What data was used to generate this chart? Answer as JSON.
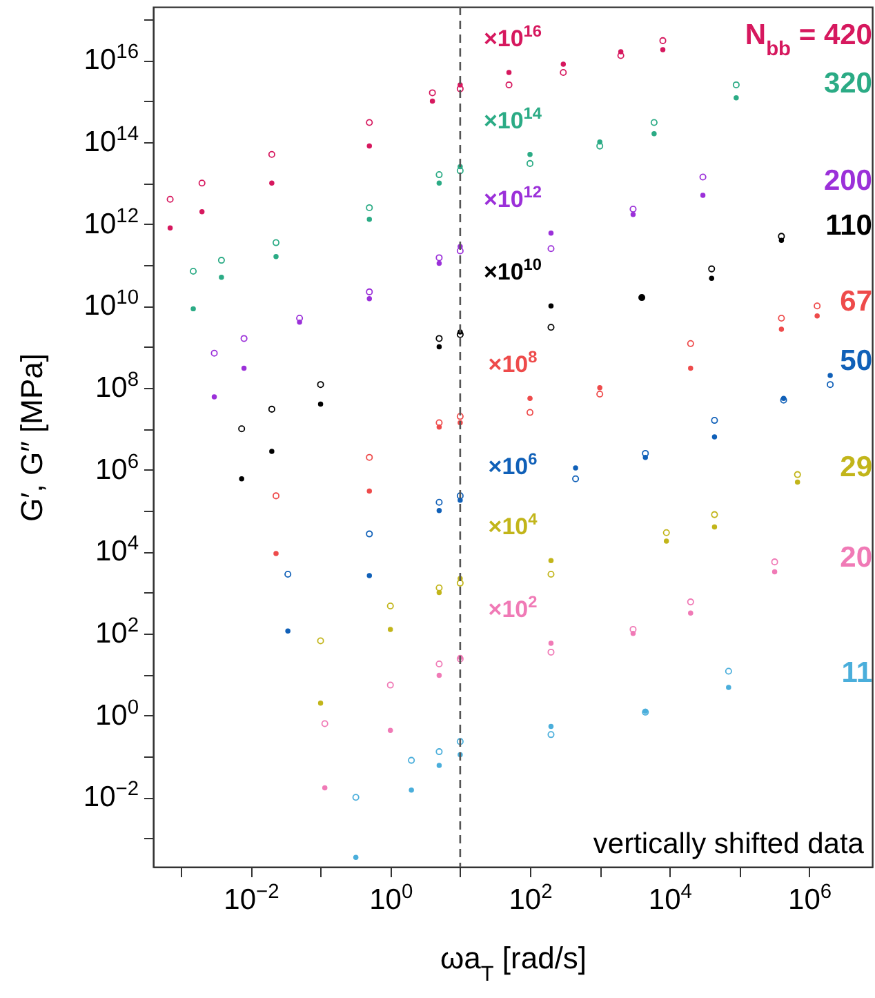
{
  "chart_data": {
    "type": "scatter",
    "log": "xy",
    "grid": false,
    "xlabel": "ωa$_{T}$ [rad/s]",
    "ylabel": "G′, G″ [MPa]",
    "xlim": [
      0.0004,
      8000000.0
    ],
    "ylim": [
      0.0002,
      2e+17
    ],
    "xticks": [
      {
        "value": 0.001,
        "label": null
      },
      {
        "value": 0.01,
        "label": "10$^{−2}$"
      },
      {
        "value": 0.1,
        "label": null
      },
      {
        "value": 1,
        "label": "10$^{0}$"
      },
      {
        "value": 10,
        "label": null
      },
      {
        "value": 100,
        "label": "10$^{2}$"
      },
      {
        "value": 1000,
        "label": null
      },
      {
        "value": 10000.0,
        "label": "10$^{4}$"
      },
      {
        "value": 100000.0,
        "label": null
      },
      {
        "value": 1000000.0,
        "label": "10$^{6}$"
      }
    ],
    "yticks": [
      {
        "value": 0.001,
        "label": null
      },
      {
        "value": 0.01,
        "label": "10$^{−2}$"
      },
      {
        "value": 0.1,
        "label": null
      },
      {
        "value": 1,
        "label": "10$^{0}$"
      },
      {
        "value": 10,
        "label": null
      },
      {
        "value": 100,
        "label": "10$^{2}$"
      },
      {
        "value": 1000,
        "label": null
      },
      {
        "value": 10000.0,
        "label": "10$^{4}$"
      },
      {
        "value": 100000.0,
        "label": null
      },
      {
        "value": 1000000.0,
        "label": "10$^{6}$"
      },
      {
        "value": 10000000.0,
        "label": null
      },
      {
        "value": 100000000.0,
        "label": "10$^{8}$"
      },
      {
        "value": 1000000000.0,
        "label": null
      },
      {
        "value": 10000000000.0,
        "label": "10$^{10}$"
      },
      {
        "value": 100000000000.0,
        "label": null
      },
      {
        "value": 1000000000000.0,
        "label": "10$^{12}$"
      },
      {
        "value": 10000000000000.0,
        "label": null
      },
      {
        "value": 100000000000000.0,
        "label": "10$^{14}$"
      },
      {
        "value": 1000000000000000.0,
        "label": null
      },
      {
        "value": 1e+16,
        "label": "10$^{16}$"
      },
      {
        "value": 1e+17,
        "label": null
      }
    ],
    "ref_lines": [
      {
        "axis": "x",
        "value": 10,
        "color": "#555555",
        "line_style": "dashed"
      }
    ],
    "annotations": [
      "×10$^{16}$",
      "×10$^{14}$",
      "×10$^{12}$",
      "×10$^{10}$",
      "×10$^{8}$",
      "×10$^{6}$",
      "×10$^{4}$",
      "×10$^{2}$",
      "vertically shifted data"
    ],
    "series": [
      {
        "color": "#d6185e",
        "marker": "circle-open",
        "x": [
          0.0007,
          0.002,
          0.02,
          0.5,
          4,
          10,
          50,
          300,
          2000,
          8000
        ],
        "values": [
          4000000000000.0,
          10000000000000.0,
          50000000000000.0,
          300000000000000.0,
          1600000000000000.0,
          2000000000000000.0,
          2500000000000000.0,
          5000000000000000.0,
          1.3e+16,
          3e+16
        ]
      },
      {
        "name": "N$_{bb}$ = 420",
        "color": "#d6185e",
        "marker": "circle",
        "x": [
          0.0007,
          0.002,
          0.02,
          0.5,
          4,
          10,
          50,
          300,
          2000,
          8000
        ],
        "values": [
          800000000000.0,
          2000000000000.0,
          10000000000000.0,
          80000000000000.0,
          1000000000000000.0,
          2500000000000000.0,
          5000000000000000.0,
          8000000000000000.0,
          1.6e+16,
          1.8e+16
        ]
      },
      {
        "color": "#2bab85",
        "marker": "circle-open",
        "x": [
          0.0015,
          0.0038,
          0.023,
          0.5,
          5,
          10,
          100,
          1000,
          6000,
          90000.0
        ],
        "values": [
          70000000000.0,
          130000000000.0,
          350000000000.0,
          2500000000000.0,
          16000000000000.0,
          20000000000000.0,
          30000000000000.0,
          80000000000000.0,
          300000000000000.0,
          2500000000000000.0
        ]
      },
      {
        "name": "320",
        "color": "#2bab85",
        "marker": "circle",
        "x": [
          0.0015,
          0.0038,
          0.023,
          0.5,
          5,
          10,
          100,
          1000,
          6000,
          90000.0
        ],
        "values": [
          8500000000.0,
          50000000000.0,
          160000000000.0,
          1300000000000.0,
          10000000000000.0,
          25000000000000.0,
          50000000000000.0,
          100000000000000.0,
          160000000000000.0,
          1200000000000000.0
        ]
      },
      {
        "color": "#9b30d9",
        "marker": "circle-open",
        "x": [
          0.003,
          0.008,
          0.05,
          0.5,
          5,
          10,
          200,
          3000,
          30000.0
        ],
        "values": [
          700000000.0,
          1600000000.0,
          5000000000.0,
          22000000000.0,
          150000000000.0,
          220000000000.0,
          250000000000.0,
          2300000000000.0,
          14000000000000.0
        ]
      },
      {
        "name": "200",
        "color": "#9b30d9",
        "marker": "circle",
        "x": [
          0.003,
          0.008,
          0.05,
          0.5,
          5,
          10,
          200,
          3000,
          30000.0
        ],
        "values": [
          60000000.0,
          300000000.0,
          4000000000.0,
          15000000000.0,
          110000000000.0,
          280000000000.0,
          600000000000.0,
          1700000000000.0,
          5000000000000.0
        ]
      },
      {
        "color": "#000000",
        "marker": "circle-open",
        "x": [
          0.0074,
          0.02,
          0.1,
          5,
          10,
          200,
          4000,
          40000.0,
          400000.0
        ],
        "values": [
          10000000.0,
          30000000.0,
          120000000.0,
          1600000000.0,
          2000000000.0,
          3000000000.0,
          16000000000.0,
          80000000000.0,
          500000000000.0
        ]
      },
      {
        "name": "110",
        "color": "#000000",
        "marker": "circle",
        "x": [
          0.0074,
          0.02,
          0.1,
          5,
          10,
          200,
          4000,
          40000.0,
          400000.0
        ],
        "values": [
          600000.0,
          2800000.0,
          40000000.0,
          1000000000.0,
          2300000000.0,
          10000000000.0,
          16000000000.0,
          47000000000.0,
          400000000000.0
        ]
      },
      {
        "color": "#ee4b4b",
        "marker": "circle-open",
        "x": [
          0.023,
          0.5,
          5,
          10,
          100,
          1000,
          20000.0,
          400000.0,
          1300000.0
        ],
        "values": [
          230000.0,
          2000000.0,
          14000000.0,
          20000000.0,
          25000000.0,
          70000000.0,
          1200000000.0,
          5000000000.0,
          10000000000.0
        ]
      },
      {
        "name": "67",
        "color": "#ee4b4b",
        "marker": "circle",
        "x": [
          0.023,
          0.5,
          5,
          10,
          100,
          1000,
          20000.0,
          400000.0,
          1300000.0
        ],
        "values": [
          9000.0,
          300000.0,
          11000000.0,
          14000000.0,
          55000000.0,
          100000000.0,
          300000000.0,
          2700000000.0,
          5700000000.0
        ]
      },
      {
        "color": "#1060b8",
        "marker": "circle-open",
        "x": [
          0.034,
          0.5,
          5,
          10,
          450,
          4500,
          44000.0,
          430000.0,
          2000000.0
        ],
        "values": [
          2800.0,
          27000.0,
          160000.0,
          230000.0,
          600000.0,
          2500000.0,
          16000000.0,
          50000000.0,
          120000000.0
        ]
      },
      {
        "name": "50",
        "color": "#1060b8",
        "marker": "circle",
        "x": [
          0.034,
          0.5,
          5,
          10,
          450,
          4500,
          44000.0,
          430000.0,
          2000000.0
        ],
        "values": [
          115,
          2600.0,
          100000.0,
          180000.0,
          1100000.0,
          2000000.0,
          6300000.0,
          55000000.0,
          200000000.0
        ]
      },
      {
        "color": "#c2b51a",
        "marker": "circle-open",
        "x": [
          0.1,
          1,
          5,
          10,
          200,
          9000,
          44000.0,
          680000.0
        ],
        "values": [
          66,
          470,
          1300.0,
          1700.0,
          2800.0,
          29000.0,
          80000.0,
          760000.0
        ]
      },
      {
        "name": "29",
        "color": "#c2b51a",
        "marker": "circle",
        "x": [
          0.1,
          1,
          5,
          10,
          200,
          9000,
          44000.0,
          680000.0
        ],
        "values": [
          2,
          126,
          1000.0,
          2200.0,
          6000.0,
          18000.0,
          40000.0,
          500000.0
        ]
      },
      {
        "color": "#f07ab6",
        "marker": "circle-open",
        "x": [
          0.115,
          1,
          5,
          10,
          200,
          3000,
          20000.0,
          320000.0
        ],
        "values": [
          0.63,
          5.5,
          18,
          24,
          35,
          126,
          590,
          5600.0
        ]
      },
      {
        "name": "20",
        "color": "#f07ab6",
        "marker": "circle",
        "x": [
          0.115,
          1,
          5,
          10,
          200,
          3000,
          20000.0,
          320000.0
        ],
        "values": [
          0.017,
          0.43,
          9.5,
          26,
          58,
          100,
          316,
          3200.0
        ]
      },
      {
        "color": "#4aaedb",
        "marker": "circle-open",
        "x": [
          0.32,
          2,
          5,
          10,
          200,
          4500,
          70000.0
        ],
        "values": [
          0.01,
          0.08,
          0.13,
          0.23,
          0.34,
          1.2,
          12
        ]
      },
      {
        "name": "11",
        "color": "#4aaedb",
        "marker": "circle",
        "x": [
          0.32,
          2,
          5,
          10,
          200,
          4500,
          70000.0
        ],
        "values": [
          0.00034,
          0.015,
          0.06,
          0.11,
          0.54,
          1.26,
          4.8
        ]
      }
    ]
  }
}
